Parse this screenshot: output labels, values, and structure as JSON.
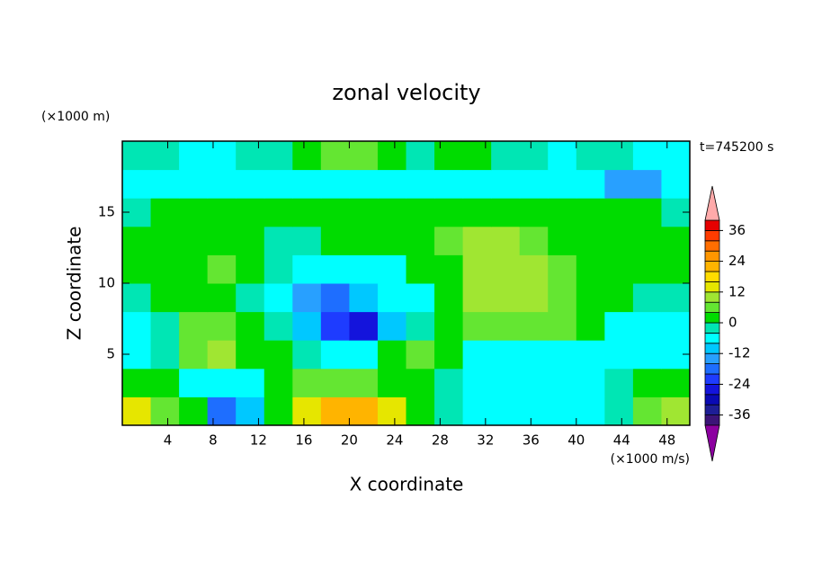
{
  "chart_data": {
    "type": "contour",
    "title": "zonal velocity",
    "x_label": "X coordinate",
    "y_label": "Z coordinate",
    "y_unit": "(×1000 m)",
    "value_unit": "(×1000 m/s)",
    "time_label": "t=745200 s",
    "xlim": [
      0,
      50
    ],
    "ylim": [
      0,
      20
    ],
    "xticks": [
      4,
      8,
      12,
      16,
      20,
      24,
      28,
      32,
      36,
      40,
      44,
      48
    ],
    "yticks": [
      5,
      10,
      15
    ],
    "x": [
      1.25,
      3.75,
      6.25,
      8.75,
      11.25,
      13.75,
      16.25,
      18.75,
      21.25,
      23.75,
      26.25,
      28.75,
      31.25,
      33.75,
      36.25,
      38.75,
      41.25,
      43.75,
      46.25,
      48.75
    ],
    "y": [
      1,
      3,
      5,
      7,
      9,
      11,
      13,
      15,
      17,
      19
    ],
    "z_values": [
      [
        14,
        6,
        2,
        -20,
        -10,
        2,
        14,
        22,
        20,
        12,
        2,
        -2,
        -6,
        -6,
        -6,
        -6,
        -6,
        -2,
        6,
        10
      ],
      [
        2,
        2,
        -6,
        -6,
        -6,
        2,
        4,
        4,
        4,
        2,
        2,
        -2,
        -6,
        -6,
        -6,
        -6,
        -6,
        -4,
        2,
        2
      ],
      [
        -6,
        -2,
        6,
        10,
        2,
        2,
        -2,
        -6,
        -6,
        2,
        6,
        2,
        -6,
        -6,
        -6,
        -6,
        -6,
        -6,
        -6,
        -6
      ],
      [
        -8,
        -2,
        6,
        6,
        2,
        -2,
        -10,
        -22,
        -26,
        -10,
        -2,
        2,
        6,
        6,
        6,
        4,
        2,
        -6,
        -6,
        -8
      ],
      [
        -4,
        2,
        2,
        2,
        -2,
        -6,
        -16,
        -18,
        -10,
        -6,
        -6,
        2,
        8,
        8,
        8,
        6,
        2,
        2,
        -2,
        -4
      ],
      [
        2,
        2,
        2,
        4,
        2,
        -4,
        -6,
        -8,
        -8,
        -6,
        2,
        2,
        8,
        8,
        8,
        6,
        2,
        2,
        2,
        2
      ],
      [
        2,
        2,
        2,
        2,
        2,
        -2,
        -2,
        2,
        2,
        2,
        2,
        6,
        8,
        8,
        6,
        2,
        2,
        2,
        2,
        2
      ],
      [
        -4,
        2,
        2,
        2,
        2,
        2,
        2,
        2,
        2,
        2,
        2,
        2,
        2,
        2,
        2,
        2,
        2,
        2,
        2,
        -2
      ],
      [
        -8,
        -8,
        -6,
        -6,
        -6,
        -6,
        -6,
        -6,
        -6,
        -6,
        -6,
        -6,
        -6,
        -6,
        -6,
        -6,
        -8,
        -14,
        -14,
        -8
      ],
      [
        -4,
        -4,
        -6,
        -6,
        -4,
        -2,
        2,
        6,
        6,
        2,
        -2,
        2,
        2,
        -2,
        -4,
        -6,
        -4,
        -4,
        -6,
        -6
      ]
    ],
    "clim": [
      -40,
      40
    ],
    "cticks": [
      -36,
      -24,
      -12,
      0,
      12,
      24,
      36
    ],
    "colors": [
      "#3c1478",
      "#1e1e96",
      "#0a0ab4",
      "#1414dc",
      "#1e3cff",
      "#1e6eff",
      "#28a0ff",
      "#00c8ff",
      "#00ffff",
      "#00e6b4",
      "#00dc00",
      "#64e632",
      "#a0e632",
      "#e6e600",
      "#ffdc00",
      "#ffb400",
      "#ff9600",
      "#ff6e00",
      "#ff3c00",
      "#e60000"
    ],
    "under_color": "#8c00a0",
    "over_color": "#ffaaaa"
  }
}
